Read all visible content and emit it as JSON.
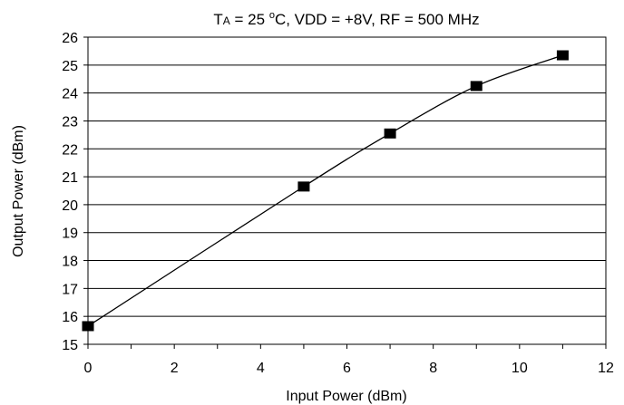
{
  "chart_data": {
    "type": "line",
    "title": {
      "t": "T",
      "sub": "A",
      "mid": " = 25 ",
      "deg": "o",
      "rest": "C, VDD = +8V, RF = 500 MHz"
    },
    "xlabel": "Input Power (dBm)",
    "ylabel": "Output Power (dBm)",
    "xlim": [
      0,
      12
    ],
    "ylim": [
      15,
      26
    ],
    "x_ticks": [
      "0",
      "2",
      "4",
      "6",
      "8",
      "10",
      "12"
    ],
    "y_ticks": [
      "15",
      "16",
      "17",
      "18",
      "19",
      "20",
      "21",
      "22",
      "23",
      "24",
      "25",
      "26"
    ],
    "grid": "horizontal",
    "marker": "square",
    "series": [
      {
        "x": [
          0,
          5,
          7,
          9,
          11
        ],
        "y": [
          15.65,
          20.65,
          22.55,
          24.25,
          25.35
        ]
      }
    ]
  }
}
